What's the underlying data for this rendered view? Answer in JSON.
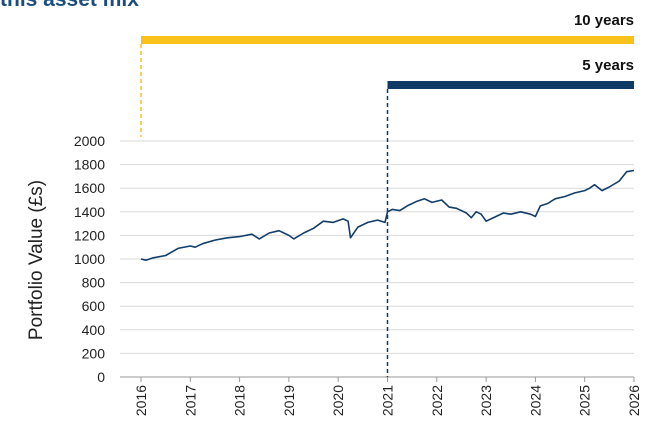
{
  "chart_data": {
    "type": "line",
    "title": "this asset mix",
    "y_label": "Portfolio Value (£s)",
    "xlim": [
      2016,
      2026
    ],
    "xticks": [
      2016,
      2017,
      2018,
      2019,
      2020,
      2021,
      2022,
      2023,
      2024,
      2025,
      2026
    ],
    "ylim": [
      0,
      2000
    ],
    "yticks": [
      0,
      200,
      400,
      600,
      800,
      1000,
      1200,
      1400,
      1600,
      1800,
      2000
    ],
    "grid": true,
    "annotations": [
      {
        "label": "10 years",
        "start": 2016,
        "end": 2026,
        "color": "#f7c21b"
      },
      {
        "label": "5 years",
        "start": 2021,
        "end": 2026,
        "color": "#0f3a66"
      }
    ],
    "series": [
      {
        "name": "Portfolio",
        "color": "#123d6a",
        "x": [
          2016.0,
          2016.1,
          2016.25,
          2016.5,
          2016.75,
          2017.0,
          2017.1,
          2017.25,
          2017.5,
          2017.75,
          2018.0,
          2018.25,
          2018.4,
          2018.6,
          2018.8,
          2019.0,
          2019.1,
          2019.3,
          2019.5,
          2019.7,
          2019.9,
          2020.1,
          2020.2,
          2020.25,
          2020.4,
          2020.6,
          2020.8,
          2020.95,
          2021.0,
          2021.1,
          2021.25,
          2021.4,
          2021.6,
          2021.75,
          2021.9,
          2022.1,
          2022.25,
          2022.4,
          2022.6,
          2022.7,
          2022.8,
          2022.9,
          2023.0,
          2023.2,
          2023.35,
          2023.5,
          2023.7,
          2023.9,
          2024.0,
          2024.1,
          2024.25,
          2024.4,
          2024.6,
          2024.8,
          2025.0,
          2025.1,
          2025.2,
          2025.35,
          2025.5,
          2025.7,
          2025.85,
          2026.0
        ],
        "values": [
          1000,
          990,
          1010,
          1030,
          1090,
          1110,
          1100,
          1130,
          1160,
          1180,
          1190,
          1210,
          1170,
          1220,
          1240,
          1200,
          1170,
          1220,
          1260,
          1320,
          1310,
          1340,
          1320,
          1180,
          1270,
          1310,
          1330,
          1310,
          1400,
          1420,
          1410,
          1450,
          1490,
          1510,
          1480,
          1500,
          1440,
          1430,
          1390,
          1350,
          1400,
          1380,
          1320,
          1360,
          1390,
          1380,
          1400,
          1380,
          1360,
          1450,
          1470,
          1510,
          1530,
          1560,
          1580,
          1600,
          1630,
          1580,
          1610,
          1660,
          1740,
          1750
        ]
      }
    ]
  }
}
